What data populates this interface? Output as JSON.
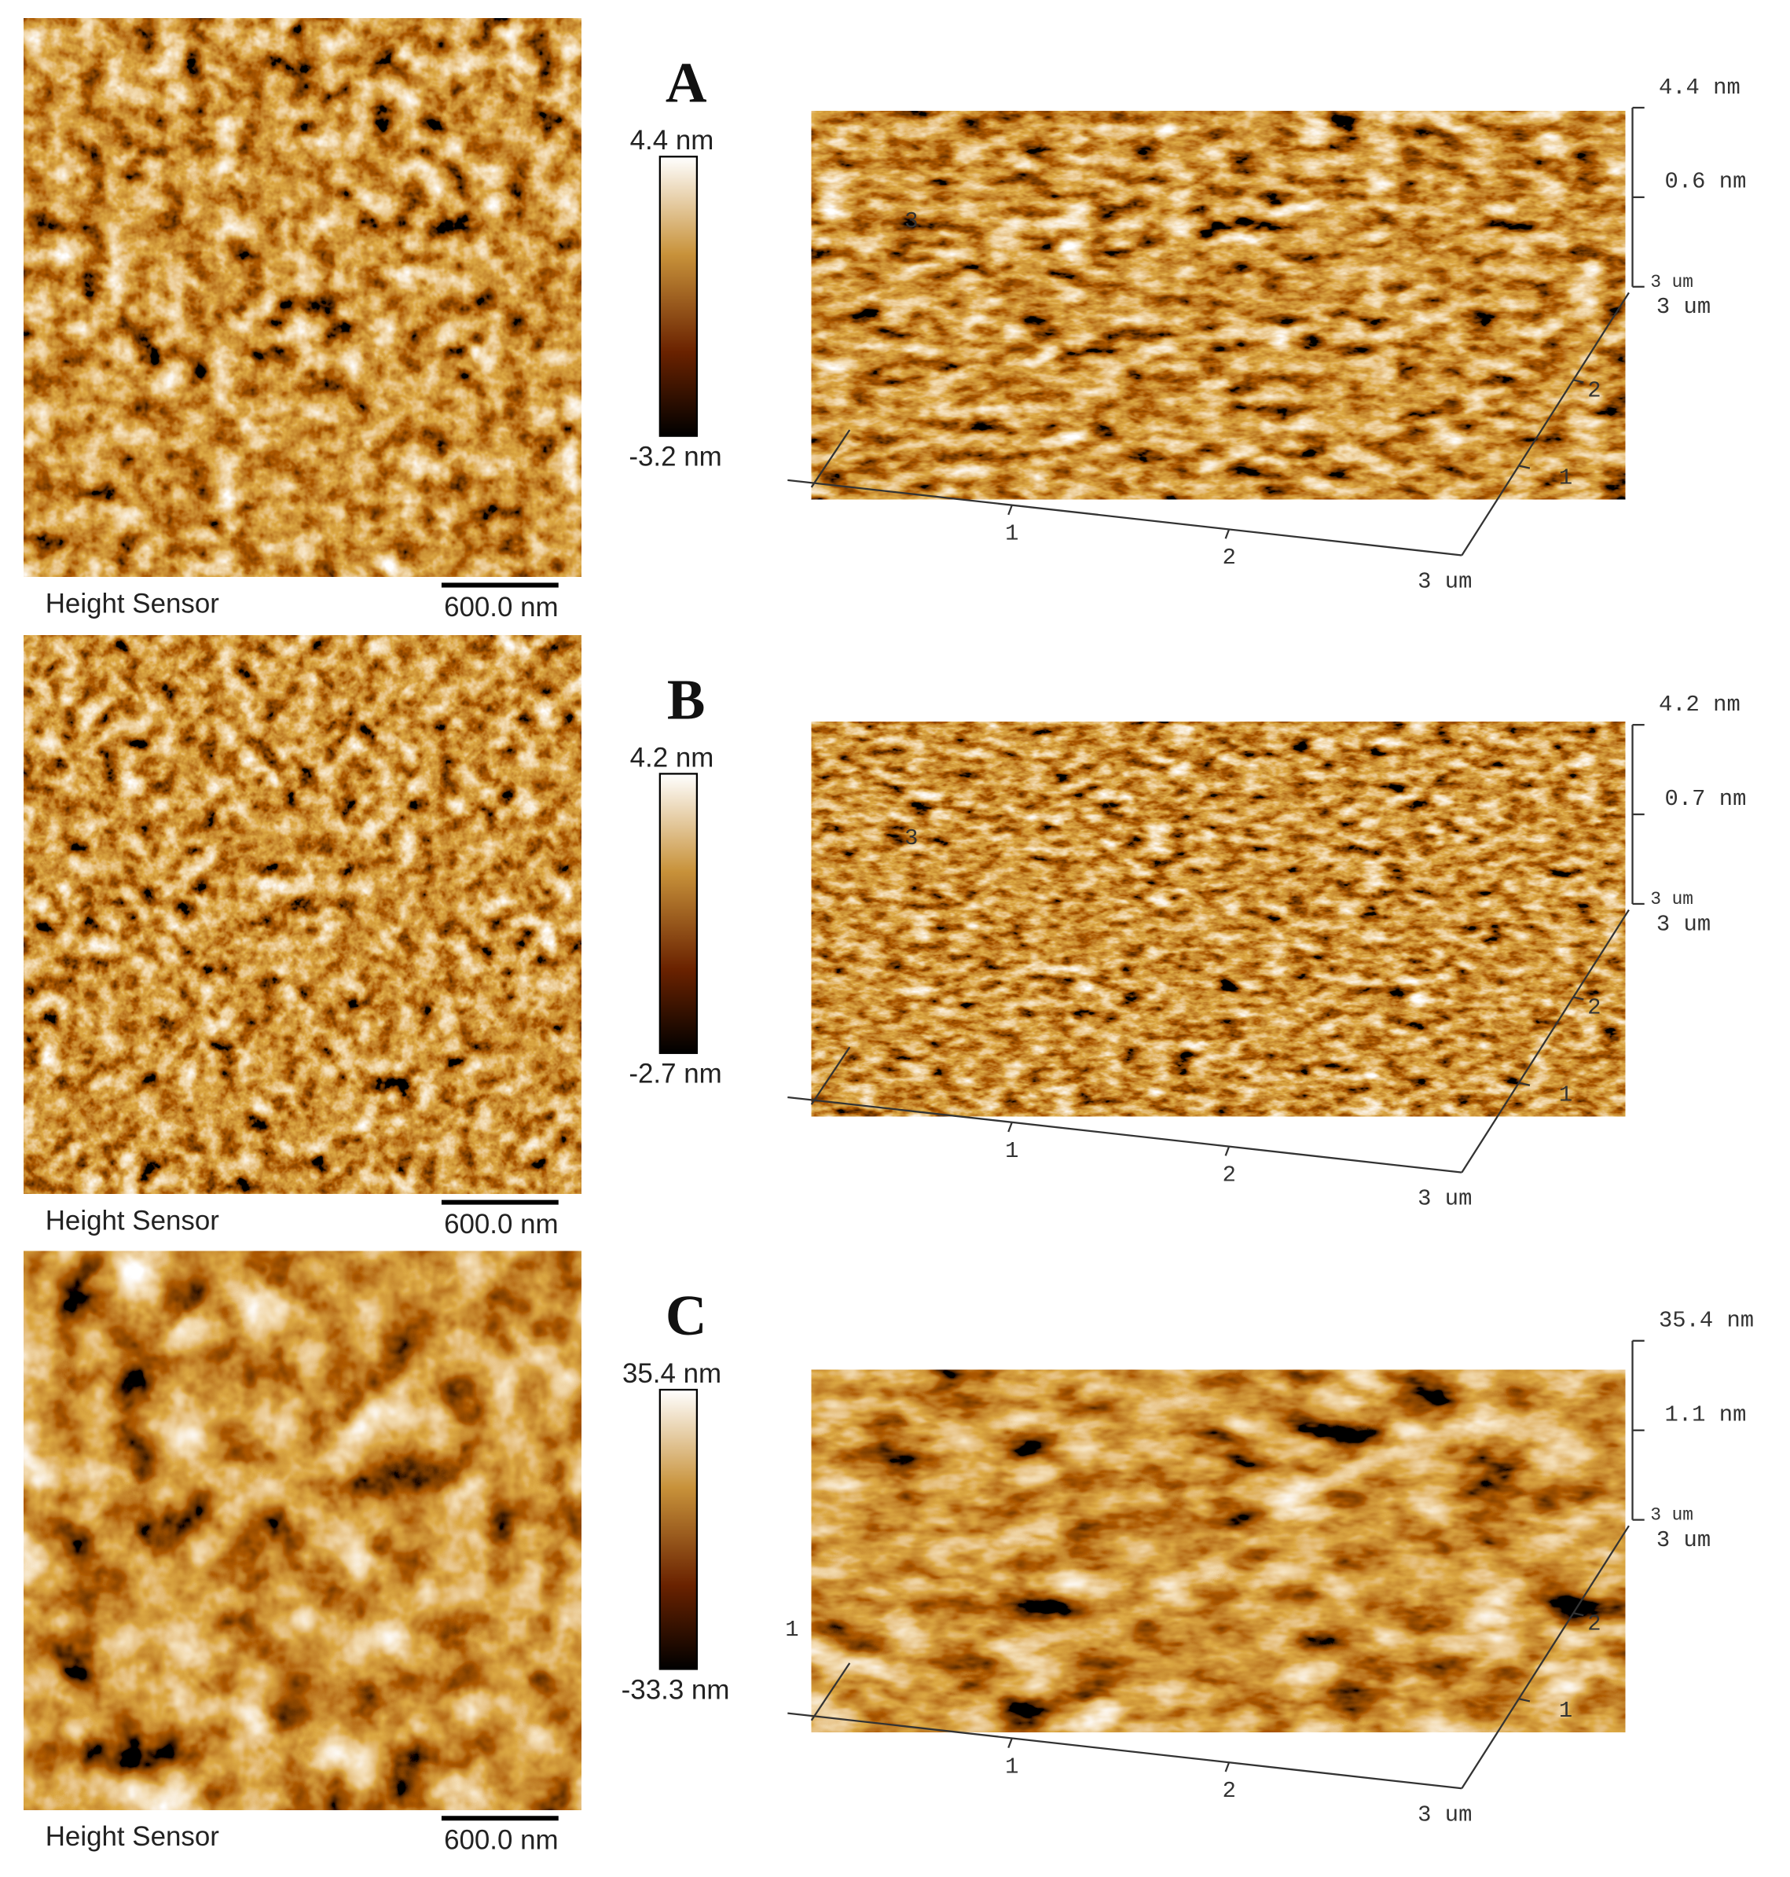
{
  "panels": [
    {
      "label": "A",
      "image_caption": "Height Sensor",
      "scale_bar": "600.0 nm",
      "colorbar": {
        "max": "4.4 nm",
        "min": "-3.2 nm"
      },
      "surface": {
        "z_max": "4.4 nm",
        "z_mid": "0.6 nm",
        "z_base": "3 um",
        "side_label": "3",
        "x_ticks": [
          "1",
          "2",
          "3 um"
        ],
        "y_ticks": [
          "1",
          "2",
          "3 um"
        ]
      }
    },
    {
      "label": "B",
      "image_caption": "Height Sensor",
      "scale_bar": "600.0 nm",
      "colorbar": {
        "max": "4.2 nm",
        "min": "-2.7 nm"
      },
      "surface": {
        "z_max": "4.2 nm",
        "z_mid": "0.7 nm",
        "z_base": "3 um",
        "side_label": "3",
        "x_ticks": [
          "1",
          "2",
          "3 um"
        ],
        "y_ticks": [
          "1",
          "2",
          "3 um"
        ]
      }
    },
    {
      "label": "C",
      "image_caption": "Height Sensor",
      "scale_bar": "600.0 nm",
      "colorbar": {
        "max": "35.4 nm",
        "min": "-33.3 nm"
      },
      "surface": {
        "z_max": "35.4 nm",
        "z_mid": "1.1 nm",
        "z_base": "3 um",
        "side_label": "1",
        "x_ticks": [
          "1",
          "2",
          "3 um"
        ],
        "y_ticks": [
          "1",
          "2",
          "3 um"
        ]
      }
    }
  ]
}
